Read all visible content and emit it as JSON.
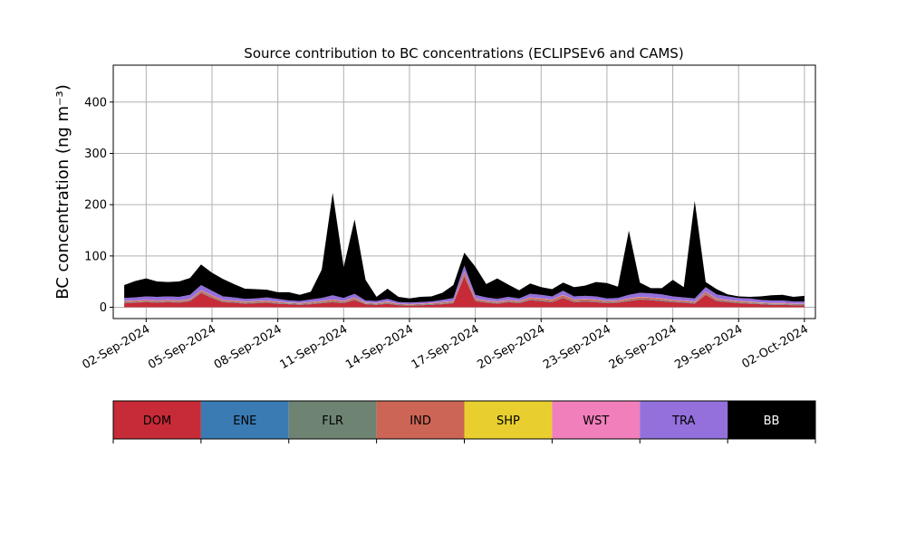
{
  "chart_data": {
    "type": "area",
    "stacked": true,
    "title": "Source contribution to BC concentrations (ECLIPSEv6 and CAMS)",
    "ylabel": "BC concentration (ng m⁻³)",
    "xlabel": "",
    "grid": true,
    "ylim": [
      -22,
      472
    ],
    "xlim": [
      "2024-08-31T12:00",
      "2024-10-02T12:00"
    ],
    "y_ticks": [
      0,
      100,
      200,
      300,
      400
    ],
    "x_ticks": [
      "02-Sep-2024",
      "05-Sep-2024",
      "08-Sep-2024",
      "11-Sep-2024",
      "14-Sep-2024",
      "17-Sep-2024",
      "20-Sep-2024",
      "23-Sep-2024",
      "26-Sep-2024",
      "29-Sep-2024",
      "02-Oct-2024"
    ],
    "legend_position": "below",
    "x": [
      "2024-09-01T00:00",
      "2024-09-01T12:00",
      "2024-09-02T00:00",
      "2024-09-02T12:00",
      "2024-09-03T00:00",
      "2024-09-03T12:00",
      "2024-09-04T00:00",
      "2024-09-04T12:00",
      "2024-09-05T00:00",
      "2024-09-05T12:00",
      "2024-09-06T00:00",
      "2024-09-06T12:00",
      "2024-09-07T00:00",
      "2024-09-07T12:00",
      "2024-09-08T00:00",
      "2024-09-08T12:00",
      "2024-09-09T00:00",
      "2024-09-09T12:00",
      "2024-09-10T00:00",
      "2024-09-10T12:00",
      "2024-09-11T00:00",
      "2024-09-11T12:00",
      "2024-09-12T00:00",
      "2024-09-12T12:00",
      "2024-09-13T00:00",
      "2024-09-13T12:00",
      "2024-09-14T00:00",
      "2024-09-14T12:00",
      "2024-09-15T00:00",
      "2024-09-15T12:00",
      "2024-09-16T00:00",
      "2024-09-16T12:00",
      "2024-09-17T00:00",
      "2024-09-17T12:00",
      "2024-09-18T00:00",
      "2024-09-18T12:00",
      "2024-09-19T00:00",
      "2024-09-19T12:00",
      "2024-09-20T00:00",
      "2024-09-20T12:00",
      "2024-09-21T00:00",
      "2024-09-21T12:00",
      "2024-09-22T00:00",
      "2024-09-22T12:00",
      "2024-09-23T00:00",
      "2024-09-23T12:00",
      "2024-09-24T00:00",
      "2024-09-24T12:00",
      "2024-09-25T00:00",
      "2024-09-25T12:00",
      "2024-09-26T00:00",
      "2024-09-26T12:00",
      "2024-09-27T00:00",
      "2024-09-27T12:00",
      "2024-09-28T00:00",
      "2024-09-28T12:00",
      "2024-09-29T00:00",
      "2024-09-29T12:00",
      "2024-09-30T00:00",
      "2024-09-30T12:00",
      "2024-10-01T00:00",
      "2024-10-01T12:00",
      "2024-10-02T00:00"
    ],
    "series": [
      {
        "name": "DOM",
        "color": "#c62b37",
        "values": [
          8,
          9,
          10,
          9,
          10,
          9,
          12,
          28,
          18,
          10,
          9,
          7,
          8,
          9,
          7,
          6,
          5,
          6,
          8,
          10,
          8,
          14,
          6,
          5,
          7,
          4,
          3,
          4,
          5,
          6,
          8,
          60,
          12,
          9,
          7,
          10,
          8,
          14,
          12,
          10,
          18,
          10,
          11,
          10,
          8,
          9,
          12,
          15,
          14,
          12,
          10,
          9,
          7,
          24,
          12,
          10,
          8,
          7,
          6,
          5,
          5,
          4,
          4
        ]
      },
      {
        "name": "ENE",
        "color": "#3a7bb4",
        "values": [
          0.5,
          0.5,
          0.5,
          0.5,
          0.5,
          0.5,
          0.5,
          0.5,
          0.5,
          0.5,
          0.5,
          0.5,
          0.5,
          0.5,
          0.5,
          0.5,
          0.5,
          0.5,
          0.5,
          0.5,
          0.5,
          0.5,
          0.5,
          0.5,
          0.5,
          0.5,
          0.5,
          0.5,
          0.5,
          0.5,
          0.5,
          0.5,
          0.5,
          0.5,
          0.5,
          0.5,
          0.5,
          0.5,
          0.5,
          0.5,
          0.5,
          0.5,
          0.5,
          0.5,
          0.5,
          0.5,
          0.5,
          0.5,
          0.5,
          0.5,
          0.5,
          0.5,
          0.5,
          0.5,
          0.5,
          0.5,
          0.5,
          0.5,
          0.5,
          0.5,
          0.5,
          0.5,
          0.5
        ]
      },
      {
        "name": "FLR",
        "color": "#6e8372",
        "values": [
          1,
          1,
          1,
          1,
          1,
          1,
          1,
          1,
          1,
          1,
          1,
          1,
          1,
          1,
          1,
          1,
          1,
          1,
          1,
          1,
          1,
          1,
          1,
          1,
          1,
          1,
          1,
          1,
          1,
          1,
          1,
          2,
          1,
          1,
          1,
          1,
          1,
          1,
          1,
          1,
          1,
          1,
          1,
          1,
          1,
          1,
          1,
          1,
          1,
          1,
          1,
          1,
          1,
          1,
          1,
          1,
          1,
          1,
          1,
          1,
          1,
          1,
          1
        ]
      },
      {
        "name": "IND",
        "color": "#cc6555",
        "values": [
          2,
          2,
          2,
          2,
          2,
          2,
          2,
          3,
          3,
          2,
          2,
          2,
          2,
          2,
          2,
          1,
          1,
          2,
          2,
          3,
          2,
          3,
          1,
          1,
          2,
          1,
          1,
          1,
          1,
          2,
          2,
          6,
          3,
          2,
          2,
          2,
          2,
          3,
          3,
          3,
          4,
          3,
          3,
          3,
          2,
          2,
          3,
          3,
          3,
          3,
          2,
          2,
          2,
          4,
          3,
          2,
          2,
          2,
          1,
          1,
          1,
          1,
          1
        ]
      },
      {
        "name": "SHP",
        "color": "#e8cf2f",
        "values": [
          0.3,
          0.3,
          0.3,
          0.3,
          0.3,
          0.3,
          0.3,
          0.3,
          0.3,
          0.3,
          0.3,
          0.3,
          0.3,
          0.3,
          0.3,
          0.3,
          0.3,
          0.3,
          0.3,
          0.3,
          0.3,
          0.3,
          0.3,
          0.3,
          0.3,
          0.3,
          0.3,
          0.3,
          0.3,
          0.3,
          0.3,
          0.3,
          0.3,
          0.3,
          0.3,
          0.3,
          0.3,
          0.3,
          0.3,
          0.3,
          0.3,
          0.3,
          0.3,
          0.3,
          0.3,
          0.3,
          0.3,
          0.3,
          0.3,
          0.3,
          0.3,
          0.3,
          0.3,
          0.3,
          0.3,
          0.3,
          0.3,
          0.3,
          0.3,
          0.3,
          0.3,
          0.3,
          0.3
        ]
      },
      {
        "name": "WST",
        "color": "#f07fbb",
        "values": [
          0.5,
          0.5,
          0.5,
          0.5,
          0.5,
          0.5,
          0.5,
          0.5,
          0.5,
          0.5,
          0.5,
          0.5,
          0.5,
          0.5,
          0.5,
          0.5,
          0.5,
          0.5,
          0.5,
          0.5,
          0.5,
          0.5,
          0.5,
          0.5,
          0.5,
          0.5,
          0.5,
          0.5,
          0.5,
          0.5,
          0.5,
          0.5,
          0.5,
          0.5,
          0.5,
          0.5,
          0.5,
          0.5,
          0.5,
          0.5,
          0.5,
          0.5,
          0.5,
          0.5,
          0.5,
          0.5,
          0.5,
          0.5,
          0.5,
          0.5,
          0.5,
          0.5,
          0.5,
          0.5,
          0.5,
          0.5,
          0.5,
          0.5,
          0.5,
          0.5,
          0.5,
          0.5,
          0.5
        ]
      },
      {
        "name": "TRA",
        "color": "#9370db",
        "values": [
          6,
          6,
          7,
          7,
          7,
          7,
          8,
          10,
          9,
          7,
          6,
          5,
          5,
          6,
          5,
          4,
          4,
          5,
          6,
          8,
          6,
          7,
          4,
          4,
          5,
          3,
          3,
          3,
          3,
          4,
          6,
          12,
          7,
          6,
          5,
          6,
          5,
          7,
          7,
          6,
          8,
          6,
          6,
          6,
          5,
          5,
          7,
          8,
          8,
          8,
          7,
          6,
          6,
          9,
          8,
          7,
          6,
          6,
          5,
          5,
          5,
          4,
          4
        ]
      },
      {
        "name": "BB",
        "color": "#000000",
        "values": [
          25,
          32,
          35,
          30,
          28,
          30,
          33,
          40,
          35,
          34,
          26,
          20,
          18,
          15,
          13,
          16,
          12,
          15,
          55,
          200,
          60,
          145,
          40,
          8,
          20,
          10,
          8,
          10,
          10,
          14,
          25,
          25,
          55,
          26,
          40,
          24,
          16,
          20,
          15,
          14,
          16,
          18,
          20,
          28,
          30,
          22,
          125,
          20,
          10,
          12,
          32,
          20,
          190,
          10,
          10,
          4,
          3,
          3,
          7,
          10,
          11,
          9,
          11
        ]
      }
    ]
  }
}
